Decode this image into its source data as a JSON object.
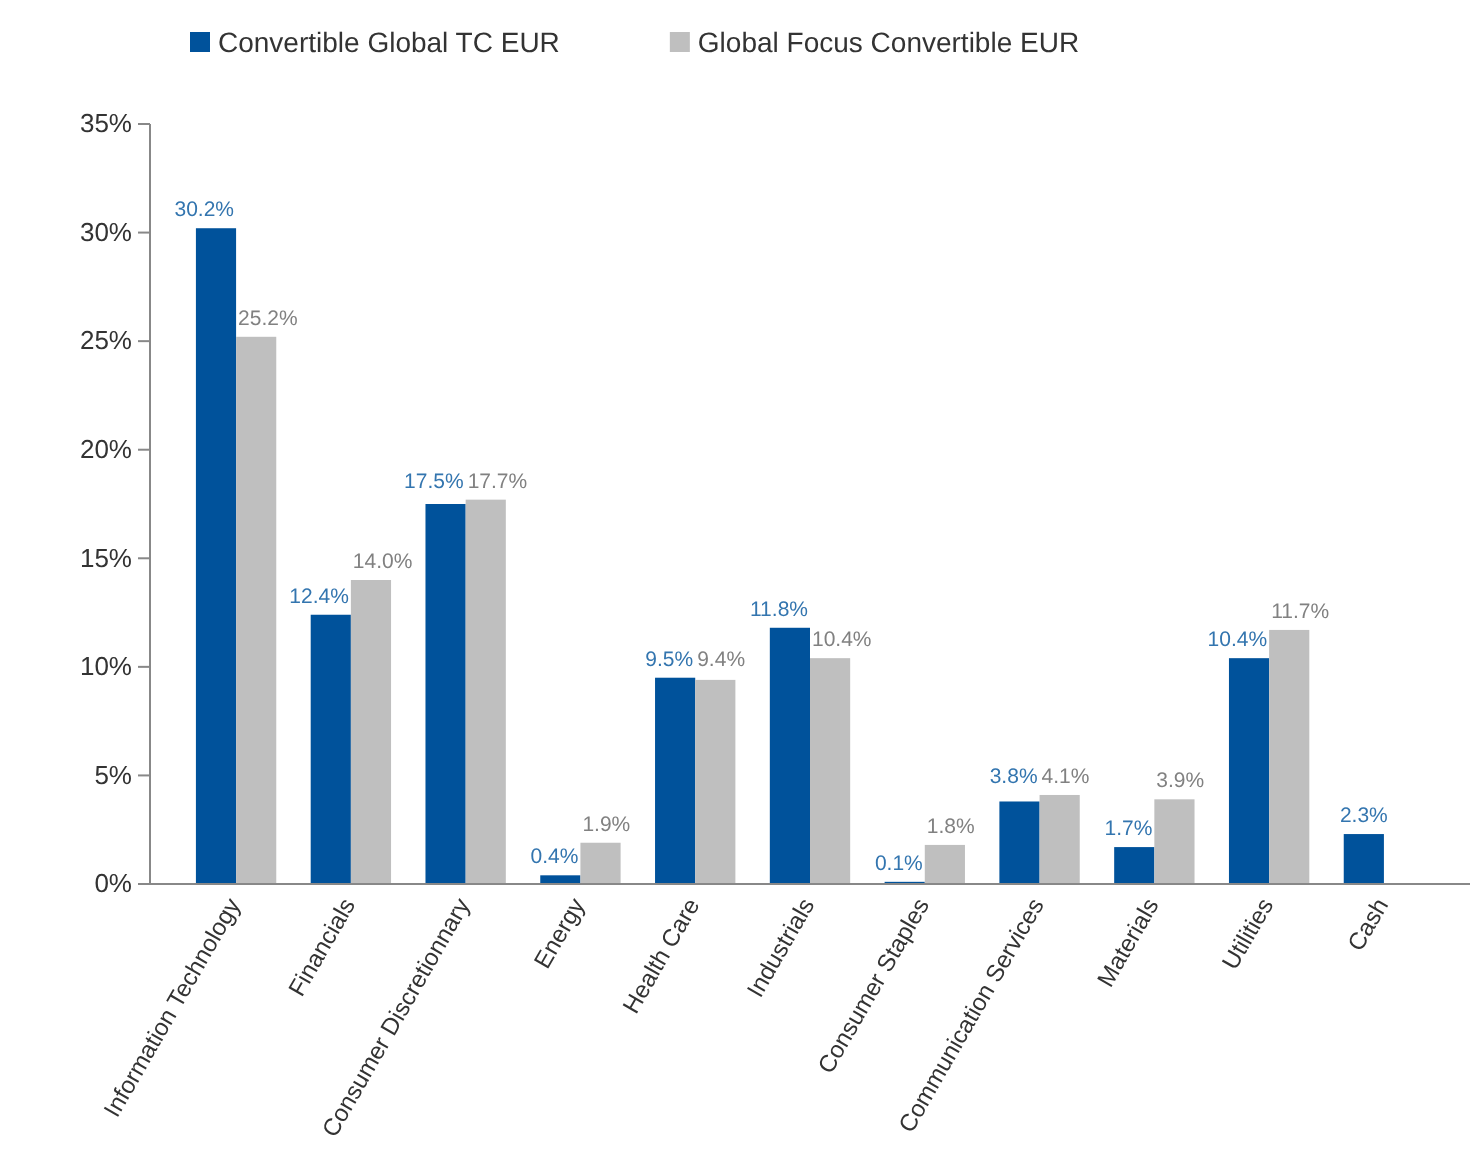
{
  "chart_data": {
    "type": "bar",
    "categories": [
      "Information Technology",
      "Financials",
      "Consumer Discretionnary",
      "Energy",
      "Health Care",
      "Industrials",
      "Consumer Staples",
      "Communication Services",
      "Materials",
      "Utilities",
      "Cash"
    ],
    "series": [
      {
        "name": "Convertible Global TC EUR",
        "color": "#00529b",
        "values": [
          30.2,
          12.4,
          17.5,
          0.4,
          9.5,
          11.8,
          0.1,
          3.8,
          1.7,
          10.4,
          2.3
        ],
        "value_labels": [
          "30.2%",
          "12.4%",
          "17.5%",
          "0.4%",
          "9.5%",
          "11.8%",
          "0.1%",
          "3.8%",
          "1.7%",
          "10.4%",
          "2.3%"
        ]
      },
      {
        "name": "Global Focus Convertible EUR",
        "color": "#bfbfbf",
        "values": [
          25.2,
          14.0,
          17.7,
          1.9,
          9.4,
          10.4,
          1.8,
          4.1,
          3.9,
          11.7,
          null
        ],
        "value_labels": [
          "25.2%",
          "14.0%",
          "17.7%",
          "1.9%",
          "9.4%",
          "10.4%",
          "1.8%",
          "4.1%",
          "3.9%",
          "11.7%",
          null
        ]
      }
    ],
    "ylim": [
      0,
      35
    ],
    "yticks": [
      {
        "value": 0,
        "label": "0%"
      },
      {
        "value": 5,
        "label": "5%"
      },
      {
        "value": 10,
        "label": "10%"
      },
      {
        "value": 15,
        "label": "15%"
      },
      {
        "value": 20,
        "label": "20%"
      },
      {
        "value": 25,
        "label": "25%"
      },
      {
        "value": 30,
        "label": "30%"
      },
      {
        "value": 35,
        "label": "35%"
      }
    ],
    "legend": "top"
  }
}
